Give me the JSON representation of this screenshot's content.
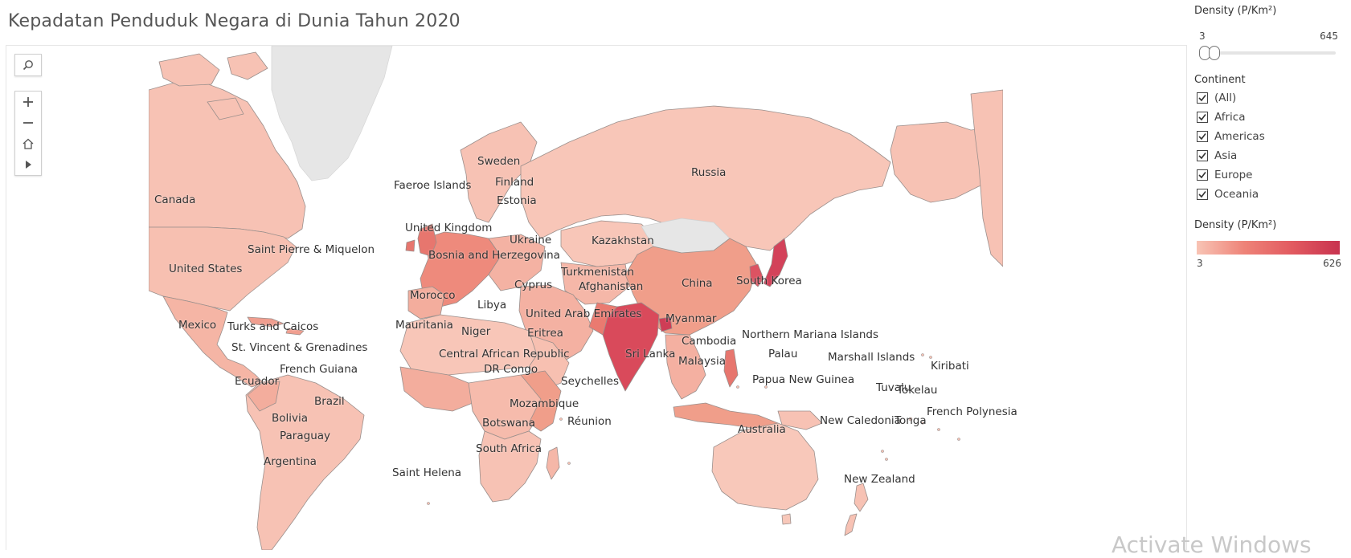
{
  "title": "Kepadatan Penduduk Negara di Dunia Tahun 2020",
  "map_controls": [
    "search-icon",
    "zoom-in-icon",
    "zoom-out-icon",
    "home-icon",
    "play-icon"
  ],
  "density_filter": {
    "header": "Density (P/Km²)",
    "min": "3",
    "max": "645",
    "selected_min_fraction": 0.0,
    "selected_max_fraction": 0.04
  },
  "continent_filter": {
    "header": "Continent",
    "options": [
      {
        "label": "(All)",
        "checked": true
      },
      {
        "label": "Africa",
        "checked": true
      },
      {
        "label": "Americas",
        "checked": true
      },
      {
        "label": "Asia",
        "checked": true
      },
      {
        "label": "Europe",
        "checked": true
      },
      {
        "label": "Oceania",
        "checked": true
      }
    ]
  },
  "color_legend": {
    "header": "Density (P/Km²)",
    "min": "3",
    "max": "626",
    "colors": [
      "#f8c4b5",
      "#ee8378",
      "#e25a60",
      "#c8334f"
    ]
  },
  "map": {
    "base_color": "#f7c2b4",
    "no_data_color": "#e6e6e6",
    "country_labels": [
      "Canada",
      "United States",
      "Mexico",
      "Turks and Caicos",
      "St. Vincent & Grenadines",
      "French Guiana",
      "Ecuador",
      "Brazil",
      "Bolivia",
      "Paraguay",
      "Argentina",
      "Saint Pierre & Miquelon",
      "Faeroe Islands",
      "Sweden",
      "Finland",
      "Estonia",
      "United Kingdom",
      "Ukraine",
      "Bosnia and Herzegovina",
      "Russia",
      "Kazakhstan",
      "Turkmenistan",
      "Afghanistan",
      "Cyprus",
      "China",
      "South Korea",
      "Morocco",
      "Libya",
      "Mauritania",
      "Niger",
      "United Arab Emirates",
      "Eritrea",
      "Central African Republic",
      "DR Congo",
      "Seychelles",
      "Mozambique",
      "Réunion",
      "Botswana",
      "South Africa",
      "Saint Helena",
      "Sri Lanka",
      "Myanmar",
      "Cambodia",
      "Malaysia",
      "Northern Mariana Islands",
      "Palau",
      "Marshall Islands",
      "Kiribati",
      "Papua New Guinea",
      "Tuvalu",
      "Tokelau",
      "French Polynesia",
      "New Caledonia",
      "Tonga",
      "Australia",
      "New Zealand"
    ]
  },
  "watermark": "Activate Windows"
}
